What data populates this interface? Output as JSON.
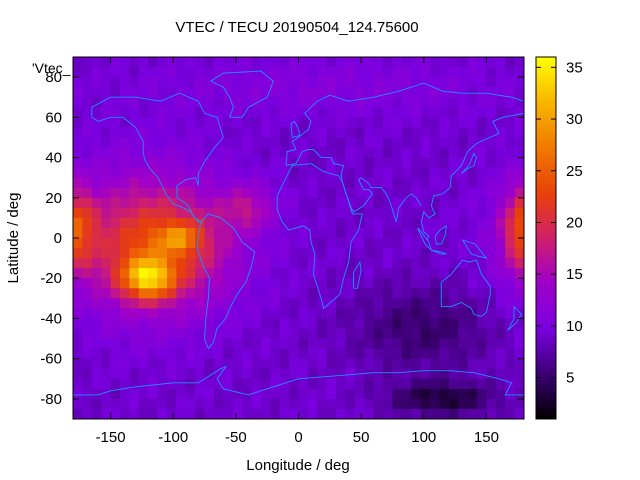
{
  "chart_data": {
    "type": "heatmap",
    "title": "VTEC / TECU 20190504_124.75600",
    "xlabel": "Longitude / deg",
    "ylabel": "Latitude / deg",
    "series_label": "'Vtec_",
    "xlim": [
      -180,
      180
    ],
    "ylim": [
      -90,
      90
    ],
    "x_ticks": [
      -150,
      -100,
      -50,
      0,
      50,
      100,
      150
    ],
    "y_ticks": [
      -80,
      -60,
      -40,
      -20,
      0,
      20,
      40,
      60,
      80
    ],
    "colorbar": {
      "range": [
        1,
        36
      ],
      "ticks": [
        5,
        10,
        15,
        20,
        25,
        30,
        35
      ],
      "palette": "black-purple-red-orange-yellow"
    },
    "colors": {
      "coastline": "#1e90ff",
      "palette_low": "#000000",
      "palette_mid": "#8b00ff",
      "palette_high": "#ffff00"
    },
    "features": {
      "background_vtec": 9,
      "peak_region": {
        "lon": -120,
        "lat": -20,
        "vtec": 36
      },
      "secondary_peak": {
        "lon": -95,
        "lat": 0,
        "vtec": 30
      },
      "east_pacific_peak": {
        "lon": 180,
        "lat": 5,
        "vtec": 22
      },
      "antarctic_minimum": {
        "lon": 115,
        "lat": -80,
        "vtec": 2
      }
    }
  }
}
